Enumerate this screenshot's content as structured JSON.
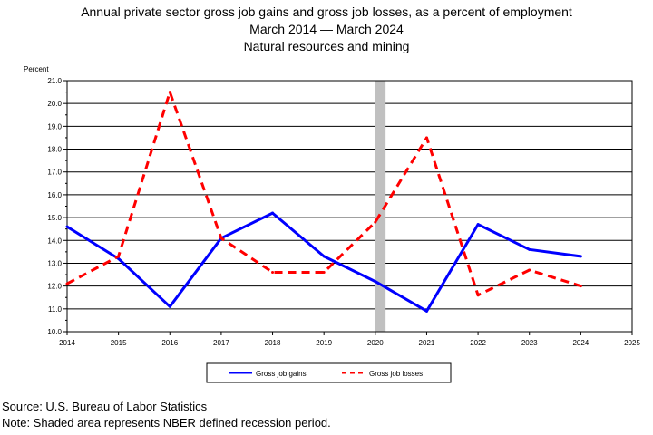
{
  "chart_data": {
    "type": "line",
    "title": "Annual private sector gross job gains and gross job losses, as a percent of employment",
    "subtitle": "March 2014 — March 2024",
    "subtitle2": "Natural resources and mining",
    "ylabel": "Percent",
    "xlim": [
      2014,
      2025
    ],
    "ylim": [
      10.0,
      21.0
    ],
    "x_ticks": [
      "2014",
      "2015",
      "2016",
      "2017",
      "2018",
      "2019",
      "2020",
      "2021",
      "2022",
      "2023",
      "2024",
      "2025"
    ],
    "y_ticks": [
      "10.0",
      "11.0",
      "12.0",
      "13.0",
      "14.0",
      "15.0",
      "16.0",
      "17.0",
      "18.0",
      "19.0",
      "20.0",
      "21.0"
    ],
    "grid": true,
    "recession": {
      "start": 2020.0,
      "end": 2020.2,
      "color": "#c0c0c0"
    },
    "series": [
      {
        "name": "Gross job gains",
        "color": "#0000ff",
        "style": "solid",
        "x": [
          2014,
          2015,
          2016,
          2017,
          2018,
          2019,
          2020,
          2021,
          2022,
          2023,
          2024
        ],
        "y": [
          14.6,
          13.2,
          11.1,
          14.1,
          15.2,
          13.3,
          12.2,
          10.9,
          14.7,
          13.6,
          13.3
        ]
      },
      {
        "name": "Gross job losses",
        "color": "#ff0000",
        "style": "dashed",
        "x": [
          2014,
          2015,
          2016,
          2017,
          2018,
          2019,
          2020,
          2021,
          2022,
          2023,
          2024
        ],
        "y": [
          12.1,
          13.3,
          20.5,
          14.1,
          12.6,
          12.6,
          14.8,
          18.5,
          11.6,
          12.7,
          12.0
        ]
      }
    ]
  },
  "footer": {
    "source": "Source: U.S. Bureau of Labor Statistics",
    "note": "Note: Shaded area represents NBER defined recession period."
  }
}
